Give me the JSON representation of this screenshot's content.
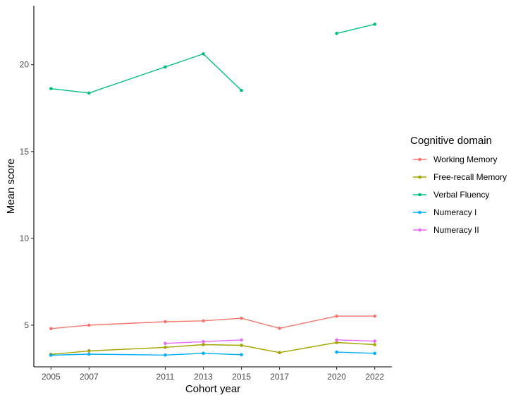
{
  "chart_data": {
    "type": "line",
    "title": "",
    "xlabel": "Cohort year",
    "ylabel": "Mean score",
    "x_ticks": [
      2005,
      2007,
      2011,
      2013,
      2015,
      2017,
      2020,
      2022
    ],
    "y_ticks": [
      5,
      10,
      15,
      20
    ],
    "xlim": [
      2004.1,
      2022.9
    ],
    "ylim": [
      2.6,
      23.4
    ],
    "grid": false,
    "legend": {
      "title": "Cognitive domain",
      "position": "right"
    },
    "series": [
      {
        "name": "Working Memory",
        "color": "#F8766D",
        "points": [
          [
            2005,
            4.8
          ],
          [
            2007,
            5.0
          ],
          [
            2011,
            5.2
          ],
          [
            2013,
            5.25
          ],
          [
            2015,
            5.4
          ],
          [
            2017,
            4.82
          ],
          [
            2020,
            5.52
          ],
          [
            2022,
            5.52
          ]
        ]
      },
      {
        "name": "Free-recall Memory",
        "color": "#A3A500",
        "points": [
          [
            2005,
            3.32
          ],
          [
            2007,
            3.52
          ],
          [
            2011,
            3.72
          ],
          [
            2013,
            3.88
          ],
          [
            2015,
            3.84
          ],
          [
            2017,
            3.42
          ],
          [
            2020,
            4.0
          ],
          [
            2022,
            3.88
          ]
        ]
      },
      {
        "name": "Verbal Fluency",
        "color": "#00BF7D",
        "points": [
          [
            2005,
            18.62
          ],
          [
            2007,
            18.37
          ],
          [
            2011,
            19.87
          ],
          [
            2013,
            20.62
          ],
          [
            2015,
            18.52
          ],
          [
            2017,
            null
          ],
          [
            2020,
            21.8
          ],
          [
            2022,
            22.33
          ]
        ]
      },
      {
        "name": "Numeracy I",
        "color": "#00B0F6",
        "points": [
          [
            2005,
            3.27
          ],
          [
            2007,
            3.33
          ],
          [
            2011,
            3.28
          ],
          [
            2013,
            3.38
          ],
          [
            2015,
            3.3
          ],
          [
            2017,
            null
          ],
          [
            2020,
            3.45
          ],
          [
            2022,
            3.38
          ]
        ]
      },
      {
        "name": "Numeracy II",
        "color": "#E76BF3",
        "points": [
          [
            2005,
            null
          ],
          [
            2007,
            null
          ],
          [
            2011,
            3.95
          ],
          [
            2013,
            4.05
          ],
          [
            2015,
            4.15
          ],
          [
            2017,
            null
          ],
          [
            2020,
            4.15
          ],
          [
            2022,
            4.08
          ]
        ]
      }
    ]
  }
}
